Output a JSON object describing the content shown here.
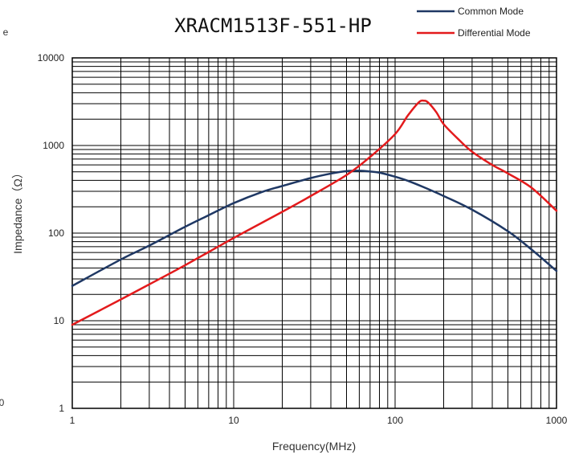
{
  "chart_data": {
    "type": "line",
    "title": "XRACM1513F-551-HP",
    "xlabel": "Frequency(MHz)",
    "ylabel": "Impedance（Ω）",
    "x_scale": "log",
    "y_scale": "log",
    "xlim": [
      1,
      1000
    ],
    "ylim": [
      1,
      10000
    ],
    "x_ticks": [
      "1",
      "10",
      "100",
      "1000"
    ],
    "y_ticks": [
      "10000",
      "1000",
      "100",
      "10",
      "1"
    ],
    "grid": true,
    "legend_position": "top-right",
    "series": [
      {
        "name": "Common Mode",
        "color": "#1f3864",
        "x": [
          1,
          2,
          3,
          5,
          7,
          10,
          15,
          20,
          30,
          40,
          50,
          60,
          70,
          80,
          100,
          120,
          150,
          200,
          300,
          500,
          700,
          1000
        ],
        "y": [
          25,
          50,
          72,
          118,
          160,
          220,
          295,
          345,
          425,
          478,
          510,
          515,
          505,
          490,
          440,
          395,
          335,
          265,
          185,
          105,
          65,
          37
        ]
      },
      {
        "name": "Differential Mode",
        "color": "#e31a1c",
        "x": [
          1,
          2,
          3,
          5,
          10,
          20,
          30,
          50,
          70,
          100,
          120,
          140,
          150,
          160,
          180,
          200,
          250,
          300,
          400,
          500,
          700,
          1000
        ],
        "y": [
          9,
          17.5,
          26,
          43,
          88,
          175,
          265,
          460,
          740,
          1350,
          2200,
          3100,
          3250,
          3100,
          2400,
          1750,
          1150,
          850,
          600,
          480,
          330,
          180
        ]
      }
    ]
  },
  "fragments": {
    "ylabel_tail": "e",
    "xtick_left": "0"
  }
}
